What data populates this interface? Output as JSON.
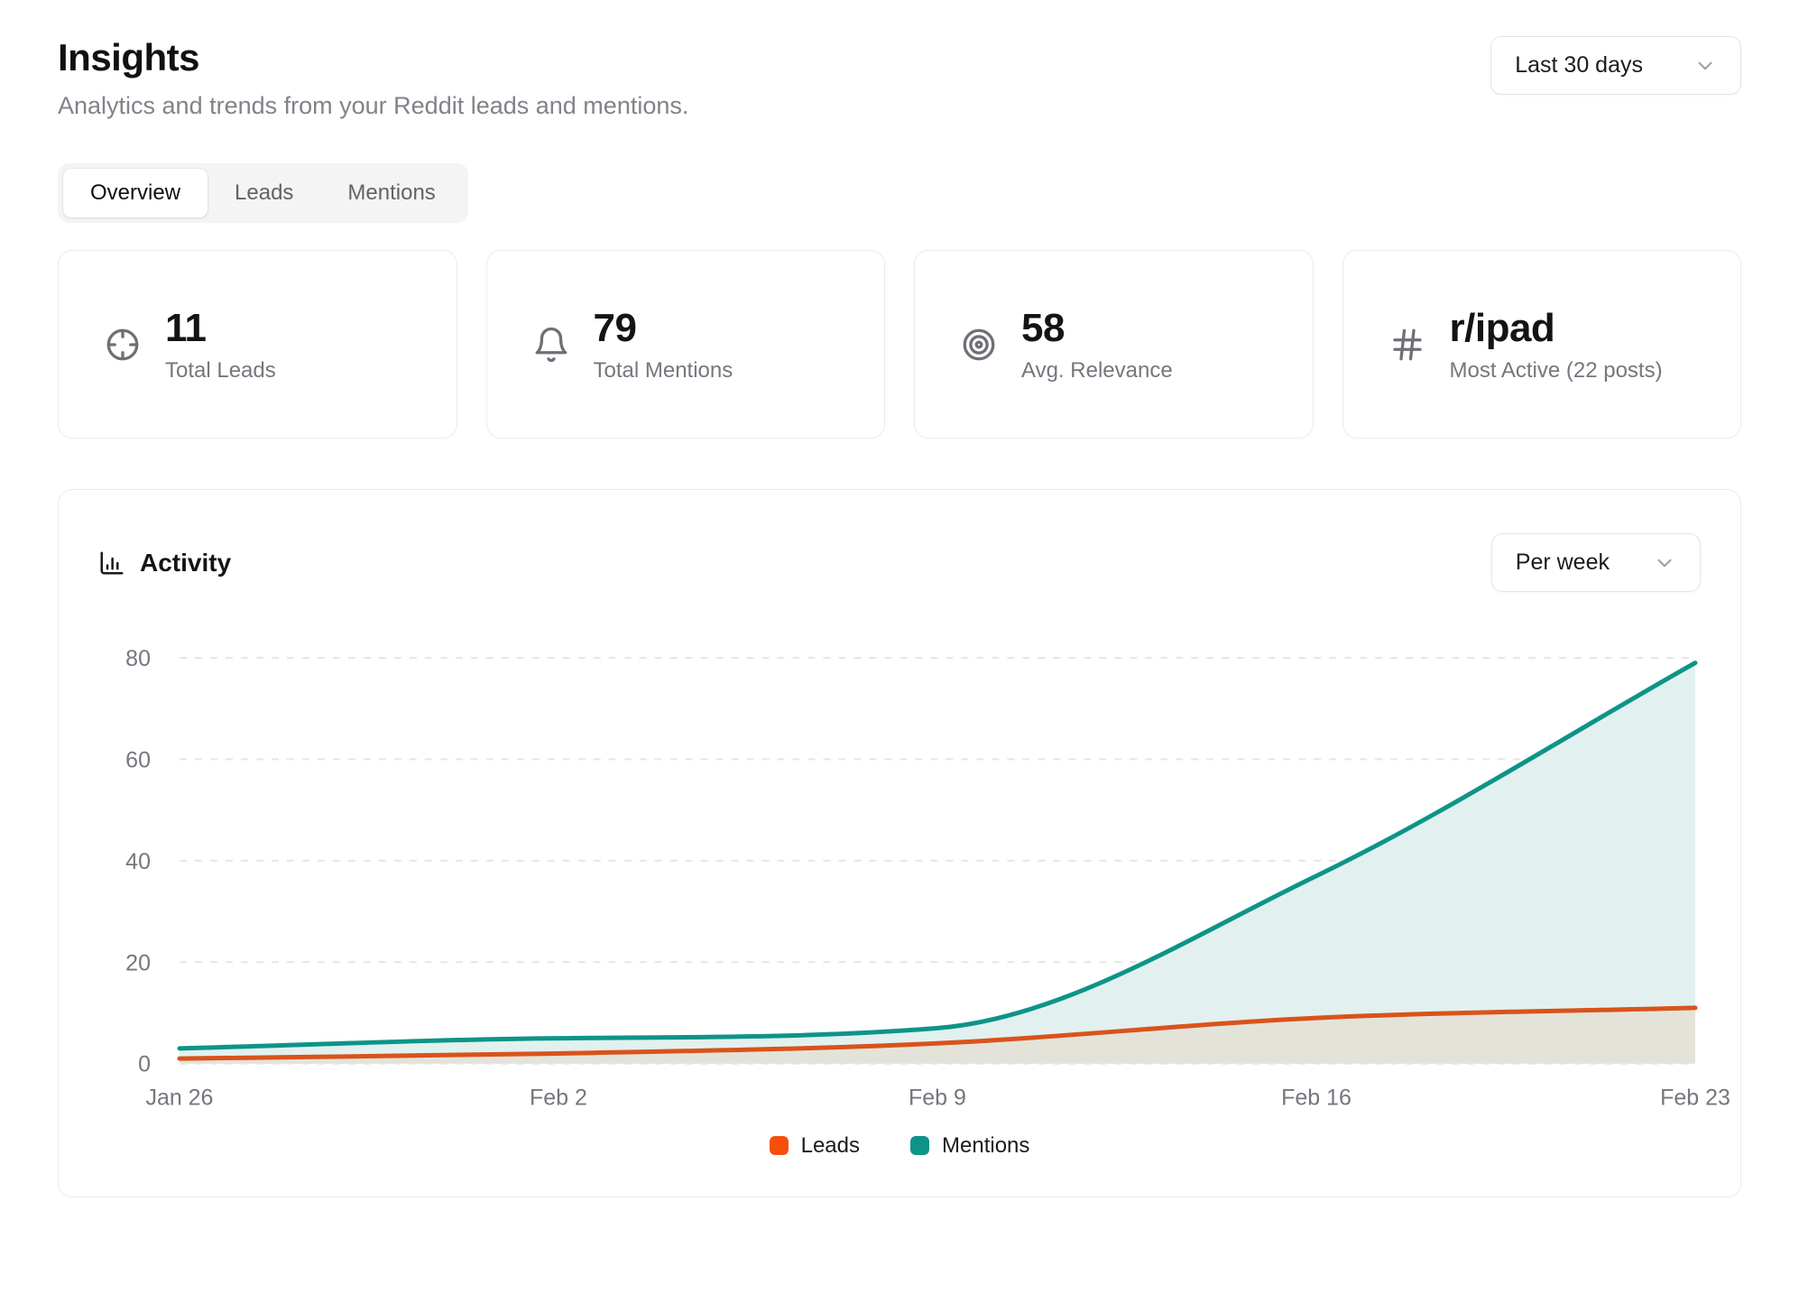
{
  "header": {
    "title": "Insights",
    "subtitle": "Analytics and trends from your Reddit leads and mentions.",
    "range_select": {
      "value": "Last 30 days"
    }
  },
  "tabs": [
    {
      "label": "Overview",
      "active": true
    },
    {
      "label": "Leads",
      "active": false
    },
    {
      "label": "Mentions",
      "active": false
    }
  ],
  "stats": [
    {
      "icon": "crosshair-icon",
      "value": "11",
      "label": "Total Leads"
    },
    {
      "icon": "bell-icon",
      "value": "79",
      "label": "Total Mentions"
    },
    {
      "icon": "target-icon",
      "value": "58",
      "label": "Avg. Relevance"
    },
    {
      "icon": "hash-icon",
      "value": "r/ipad",
      "label": "Most Active (22 posts)"
    }
  ],
  "activity": {
    "title": "Activity",
    "interval_select": {
      "value": "Per week"
    }
  },
  "chart_data": {
    "type": "area",
    "title": "Activity",
    "x": [
      "Jan 26",
      "Feb 2",
      "Feb 9",
      "Feb 16",
      "Feb 23"
    ],
    "series": [
      {
        "name": "Leads",
        "values": [
          1,
          2,
          4,
          9,
          11
        ],
        "line_color": "#d9531b",
        "fill_color": "#e4e3da",
        "legend_color": "#f4500b"
      },
      {
        "name": "Mentions",
        "values": [
          3,
          5,
          7,
          37,
          79
        ],
        "line_color": "#0d9488",
        "fill_color": "#e2f1ef",
        "legend_color": "#0d9488"
      }
    ],
    "ylim": [
      0,
      80
    ],
    "yticks": [
      0,
      20,
      40,
      60,
      80
    ],
    "grid": "horizontal-dashed",
    "grid_color": "#e6e6e9",
    "tick_color": "#76767e",
    "curve": "monotone",
    "legend_position": "bottom"
  }
}
